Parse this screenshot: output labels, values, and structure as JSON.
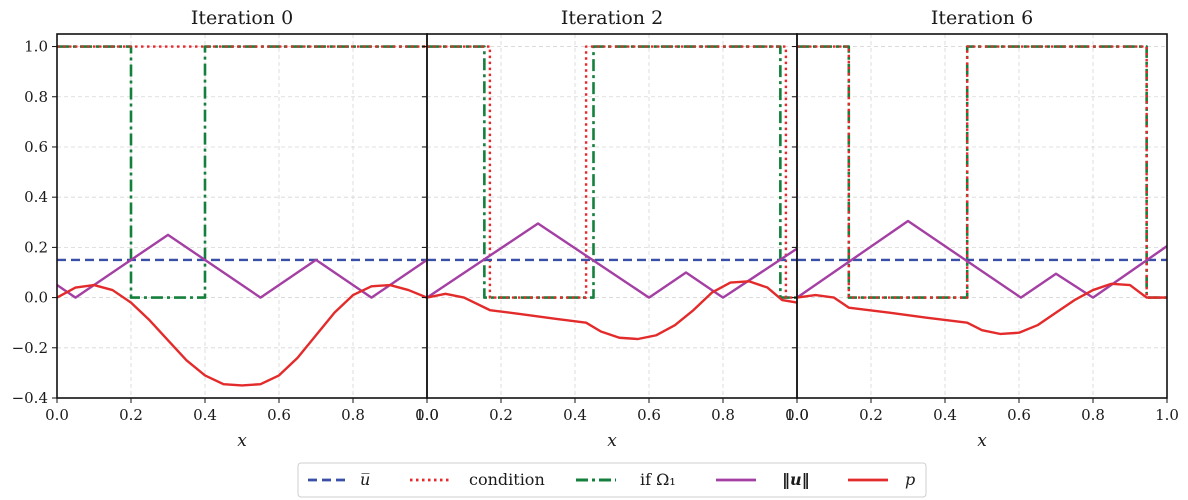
{
  "chart_data": {
    "type": "line",
    "xlabel": "x",
    "ylim": [
      -0.4,
      1.05
    ],
    "xlim": [
      0.0,
      1.0
    ],
    "yticks": [
      "1.0",
      "0.8",
      "0.6",
      "0.4",
      "0.2",
      "0.0",
      "−0.2",
      "−0.4"
    ],
    "ytick_values": [
      1.0,
      0.8,
      0.6,
      0.4,
      0.2,
      0.0,
      -0.2,
      -0.4
    ],
    "xticks": [
      "0.0",
      "0.2",
      "0.4",
      "0.6",
      "0.8",
      "1.0"
    ],
    "xtick_values": [
      0.0,
      0.2,
      0.4,
      0.6,
      0.8,
      1.0
    ],
    "grid": true,
    "legend_placement": "bottom-center",
    "legend": [
      {
        "key": "ubar",
        "label": "u̅",
        "style": "dashed",
        "color": "#3a4fa8"
      },
      {
        "key": "condition",
        "label": "condition",
        "style": "dotted",
        "color": "#e8282b"
      },
      {
        "key": "omega",
        "label": "if Ω₁",
        "style": "dashdot",
        "color": "#15803d"
      },
      {
        "key": "normu",
        "label": "‖u‖",
        "style": "solid",
        "color": "#a43fa4"
      },
      {
        "key": "p",
        "label": "p",
        "style": "solid",
        "color": "#e32b2b"
      }
    ],
    "panels": [
      {
        "title": "Iteration 0",
        "series": {
          "ubar": {
            "x": [
              0.0,
              1.0
            ],
            "y": [
              0.15,
              0.15
            ]
          },
          "condition": {
            "x": [
              0.0,
              0.4,
              0.4,
              1.0
            ],
            "y": [
              1.0,
              1.0,
              1.0,
              1.0
            ]
          },
          "omega": {
            "x": [
              0.0,
              0.2,
              0.2,
              0.4,
              0.4,
              1.0
            ],
            "y": [
              1.0,
              1.0,
              0.0,
              0.0,
              1.0,
              1.0
            ]
          },
          "normu": {
            "x": [
              0.0,
              0.05,
              0.3,
              0.55,
              0.7,
              0.85,
              1.0
            ],
            "y": [
              0.05,
              0.0,
              0.25,
              0.0,
              0.15,
              0.0,
              0.15
            ]
          },
          "p": {
            "x": [
              0.0,
              0.05,
              0.1,
              0.15,
              0.2,
              0.25,
              0.3,
              0.35,
              0.4,
              0.45,
              0.5,
              0.55,
              0.6,
              0.65,
              0.7,
              0.75,
              0.8,
              0.85,
              0.9,
              0.95,
              1.0
            ],
            "y": [
              0.0,
              0.04,
              0.05,
              0.03,
              -0.02,
              -0.09,
              -0.17,
              -0.25,
              -0.31,
              -0.345,
              -0.35,
              -0.345,
              -0.31,
              -0.24,
              -0.15,
              -0.06,
              0.01,
              0.045,
              0.05,
              0.03,
              0.0
            ]
          }
        }
      },
      {
        "title": "Iteration 2",
        "series": {
          "ubar": {
            "x": [
              0.0,
              1.0
            ],
            "y": [
              0.15,
              0.15
            ]
          },
          "condition": {
            "x": [
              0.0,
              0.17,
              0.17,
              0.43,
              0.43,
              0.97,
              0.97,
              1.0
            ],
            "y": [
              1.0,
              1.0,
              0.0,
              0.0,
              1.0,
              1.0,
              0.0,
              0.0
            ]
          },
          "omega": {
            "x": [
              0.0,
              0.155,
              0.155,
              0.45,
              0.45,
              0.955,
              0.955,
              1.0
            ],
            "y": [
              1.0,
              1.0,
              0.0,
              0.0,
              1.0,
              1.0,
              0.0,
              0.0
            ]
          },
          "normu": {
            "x": [
              0.0,
              0.3,
              0.6,
              0.7,
              0.8,
              1.0
            ],
            "y": [
              0.0,
              0.295,
              0.0,
              0.1,
              0.0,
              0.195
            ]
          },
          "p": {
            "x": [
              0.0,
              0.05,
              0.1,
              0.17,
              0.25,
              0.35,
              0.43,
              0.47,
              0.52,
              0.57,
              0.62,
              0.67,
              0.72,
              0.77,
              0.82,
              0.87,
              0.92,
              0.96,
              1.0
            ],
            "y": [
              0.0,
              0.015,
              0.0,
              -0.05,
              -0.065,
              -0.085,
              -0.1,
              -0.135,
              -0.16,
              -0.165,
              -0.15,
              -0.11,
              -0.05,
              0.02,
              0.06,
              0.065,
              0.04,
              -0.01,
              -0.02
            ]
          }
        }
      },
      {
        "title": "Iteration 6",
        "series": {
          "ubar": {
            "x": [
              0.0,
              1.0
            ],
            "y": [
              0.15,
              0.15
            ]
          },
          "condition": {
            "x": [
              0.0,
              0.14,
              0.14,
              0.46,
              0.46,
              0.945,
              0.945,
              1.0
            ],
            "y": [
              1.0,
              1.0,
              0.0,
              0.0,
              1.0,
              1.0,
              0.0,
              0.0
            ]
          },
          "omega": {
            "x": [
              0.0,
              0.14,
              0.14,
              0.46,
              0.46,
              0.945,
              0.945,
              1.0
            ],
            "y": [
              1.0,
              1.0,
              0.0,
              0.0,
              1.0,
              1.0,
              0.0,
              0.0
            ]
          },
          "normu": {
            "x": [
              0.0,
              0.3,
              0.605,
              0.7,
              0.8,
              1.0
            ],
            "y": [
              0.0,
              0.305,
              0.0,
              0.095,
              0.0,
              0.205
            ]
          },
          "p": {
            "x": [
              0.0,
              0.05,
              0.1,
              0.14,
              0.25,
              0.35,
              0.46,
              0.5,
              0.55,
              0.6,
              0.65,
              0.7,
              0.75,
              0.8,
              0.85,
              0.9,
              0.945,
              1.0
            ],
            "y": [
              0.0,
              0.01,
              0.0,
              -0.04,
              -0.06,
              -0.08,
              -0.1,
              -0.13,
              -0.145,
              -0.14,
              -0.11,
              -0.06,
              -0.01,
              0.03,
              0.055,
              0.05,
              0.0,
              0.0
            ]
          }
        }
      }
    ]
  }
}
